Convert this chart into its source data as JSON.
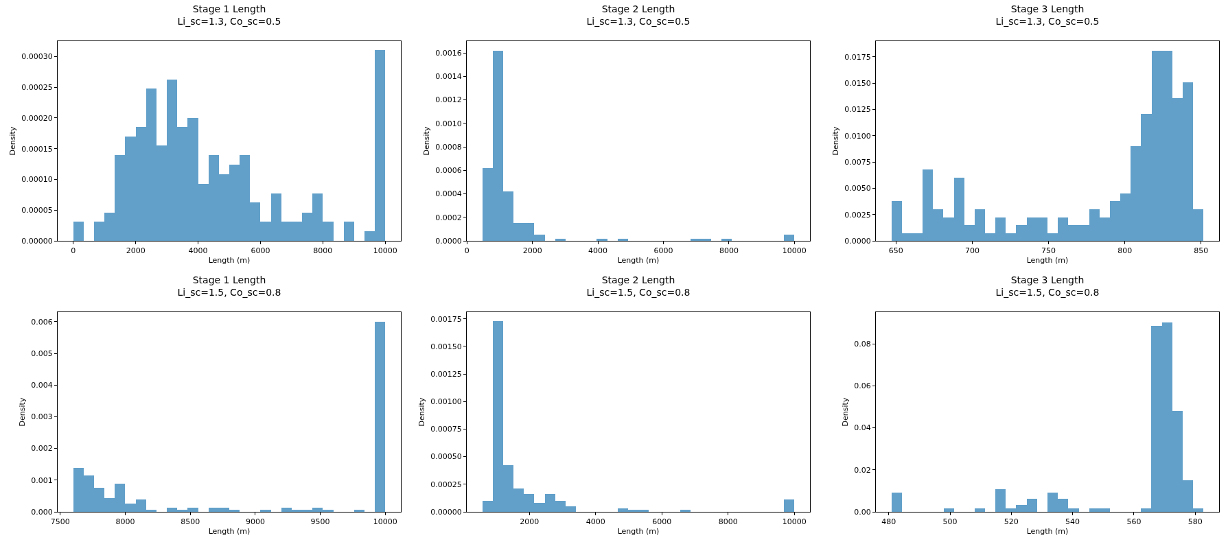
{
  "chart_data": [
    {
      "type": "histogram",
      "title": "Stage 1 Length",
      "subtitle": "Li_sc=1.3, Co_sc=0.5",
      "xlabel": "Length (m)",
      "ylabel": "Density",
      "color": "#62a0ca",
      "bins": [
        0,
        333.3,
        666.7,
        1000,
        1333.3,
        1666.7,
        2000,
        2333.3,
        2666.7,
        3000,
        3333.3,
        3666.7,
        4000,
        4333.3,
        4666.7,
        5000,
        5333.3,
        5666.7,
        6000,
        6333.3,
        6666.7,
        7000,
        7333.3,
        7666.7,
        8000,
        8333.3,
        8666.7,
        9000,
        9333.3,
        9666.7,
        10000
      ],
      "values": [
        3.1e-05,
        0,
        3.1e-05,
        4.6e-05,
        0.00014,
        0.00017,
        0.000185,
        0.000248,
        0.000155,
        0.000263,
        0.000185,
        0.0002,
        9.3e-05,
        0.00014,
        0.000108,
        0.000124,
        0.00014,
        6.2e-05,
        3.1e-05,
        7.7e-05,
        3.1e-05,
        3.1e-05,
        4.6e-05,
        7.7e-05,
        3.1e-05,
        0,
        3.1e-05,
        0,
        1.55e-05,
        0.00031
      ],
      "xlim": [
        -500,
        10500
      ],
      "ylim": [
        0,
        0.000325
      ],
      "xticks": [
        0,
        2000,
        4000,
        6000,
        8000,
        10000
      ],
      "yticks": [
        {
          "value": 0,
          "label": "0.00000"
        },
        {
          "value": 5e-05,
          "label": "0.00005"
        },
        {
          "value": 0.0001,
          "label": "0.00010"
        },
        {
          "value": 0.00015,
          "label": "0.00015"
        },
        {
          "value": 0.0002,
          "label": "0.00020"
        },
        {
          "value": 0.00025,
          "label": "0.00025"
        },
        {
          "value": 0.0003,
          "label": "0.00030"
        }
      ]
    },
    {
      "type": "histogram",
      "title": "Stage 2 Length",
      "subtitle": "Li_sc=1.3, Co_sc=0.5",
      "xlabel": "Length (m)",
      "ylabel": "Density",
      "color": "#62a0ca",
      "bins": [
        470,
        787.7,
        1105.3,
        1423,
        1740.7,
        2058.3,
        2376,
        2693.7,
        3011.3,
        3329,
        3646.7,
        3964.3,
        4282,
        4599.7,
        4917.3,
        5235,
        5552.7,
        5870.3,
        6188,
        6505.7,
        6823.3,
        7141,
        7458.7,
        7776.3,
        8094,
        8411.7,
        8729.3,
        9047,
        9364.7,
        9682.3,
        10000
      ],
      "values": [
        0.00062,
        0.00162,
        0.00042,
        0.00015,
        0.00015,
        5e-05,
        0,
        2e-05,
        0,
        0,
        0,
        2e-05,
        0,
        2e-05,
        0,
        0,
        0,
        0,
        0,
        0,
        2e-05,
        2e-05,
        0,
        2e-05,
        0,
        0,
        0,
        0,
        0,
        5e-05
      ],
      "xlim": [
        -6,
        10476
      ],
      "ylim": [
        0,
        0.0017
      ],
      "xticks": [
        0,
        2000,
        4000,
        6000,
        8000,
        10000
      ],
      "yticks": [
        {
          "value": 0,
          "label": "0.0000"
        },
        {
          "value": 0.0002,
          "label": "0.0002"
        },
        {
          "value": 0.0004,
          "label": "0.0004"
        },
        {
          "value": 0.0006,
          "label": "0.0006"
        },
        {
          "value": 0.0008,
          "label": "0.0008"
        },
        {
          "value": 0.001,
          "label": "0.0010"
        },
        {
          "value": 0.0012,
          "label": "0.0012"
        },
        {
          "value": 0.0014,
          "label": "0.0014"
        },
        {
          "value": 0.0016,
          "label": "0.0016"
        }
      ]
    },
    {
      "type": "histogram",
      "title": "Stage 3 Length",
      "subtitle": "Li_sc=1.3, Co_sc=0.5",
      "xlabel": "Length (m)",
      "ylabel": "Density",
      "color": "#62a0ca",
      "bins": [
        647,
        653.8,
        660.6,
        667.5,
        674.3,
        681.1,
        687.9,
        694.7,
        701.6,
        708.4,
        715.2,
        722,
        728.8,
        735.7,
        742.5,
        749.3,
        756.1,
        762.9,
        769.8,
        776.6,
        783.4,
        790.2,
        797,
        803.9,
        810.7,
        817.5,
        824.3,
        831.1,
        838,
        844.8,
        851.6
      ],
      "values": [
        0.0038,
        0.00075,
        0.00075,
        0.0068,
        0.003,
        0.0022,
        0.006,
        0.0015,
        0.003,
        0.00075,
        0.0022,
        0.00075,
        0.0015,
        0.0022,
        0.0022,
        0.00075,
        0.0022,
        0.0015,
        0.0015,
        0.003,
        0.0022,
        0.0038,
        0.0045,
        0.009,
        0.0121,
        0.0181,
        0.0181,
        0.0136,
        0.0151,
        0.003
      ],
      "xlim": [
        636.8,
        861.8
      ],
      "ylim": [
        0,
        0.019
      ],
      "xticks": [
        650,
        700,
        750,
        800,
        850
      ],
      "yticks": [
        {
          "value": 0,
          "label": "0.0000"
        },
        {
          "value": 0.0025,
          "label": "0.0025"
        },
        {
          "value": 0.005,
          "label": "0.0050"
        },
        {
          "value": 0.0075,
          "label": "0.0075"
        },
        {
          "value": 0.01,
          "label": "0.0100"
        },
        {
          "value": 0.0125,
          "label": "0.0125"
        },
        {
          "value": 0.015,
          "label": "0.0150"
        },
        {
          "value": 0.0175,
          "label": "0.0175"
        }
      ]
    },
    {
      "type": "histogram",
      "title": "Stage 1 Length",
      "subtitle": "Li_sc=1.5, Co_sc=0.8",
      "xlabel": "Length (m)",
      "ylabel": "Density",
      "color": "#62a0ca",
      "bins": [
        7600,
        7680,
        7760,
        7840,
        7920,
        8000,
        8080,
        8160,
        8240,
        8320,
        8400,
        8480,
        8560,
        8640,
        8720,
        8800,
        8880,
        8960,
        9040,
        9120,
        9200,
        9280,
        9360,
        9440,
        9520,
        9600,
        9680,
        9760,
        9840,
        9920,
        10000
      ],
      "values": [
        0.00138,
        0.00114,
        0.00075,
        0.00044,
        0.00089,
        0.00025,
        0.00039,
        6e-05,
        0,
        0.00012,
        6e-05,
        0.00012,
        0,
        0.00012,
        0.00012,
        6e-05,
        0,
        0,
        6e-05,
        0,
        0.00012,
        6e-05,
        6e-05,
        0.00012,
        6e-05,
        0,
        0,
        6e-05,
        0,
        0.006
      ],
      "xlim": [
        7480,
        10120
      ],
      "ylim": [
        0,
        0.0063
      ],
      "xticks": [
        7500,
        8000,
        8500,
        9000,
        9500,
        10000
      ],
      "yticks": [
        {
          "value": 0,
          "label": "0.000"
        },
        {
          "value": 0.001,
          "label": "0.001"
        },
        {
          "value": 0.002,
          "label": "0.002"
        },
        {
          "value": 0.003,
          "label": "0.003"
        },
        {
          "value": 0.004,
          "label": "0.004"
        },
        {
          "value": 0.005,
          "label": "0.005"
        },
        {
          "value": 0.006,
          "label": "0.006"
        }
      ]
    },
    {
      "type": "histogram",
      "title": "Stage 2 Length",
      "subtitle": "Li_sc=1.5, Co_sc=0.8",
      "xlabel": "Length (m)",
      "ylabel": "Density",
      "color": "#62a0ca",
      "bins": [
        577,
        891.1,
        1205.2,
        1519.3,
        1833.4,
        2147.5,
        2461.6,
        2775.7,
        3089.8,
        3403.9,
        3718,
        4032.1,
        4346.2,
        4660.3,
        4974.4,
        5288.5,
        5602.6,
        5916.7,
        6230.8,
        6544.9,
        6859,
        7173.1,
        7487.2,
        7801.3,
        8115.4,
        8429.5,
        8743.6,
        9057.7,
        9371.8,
        9685.9,
        10000
      ],
      "values": [
        0.0001,
        0.00173,
        0.00042,
        0.00021,
        0.00016,
        8e-05,
        0.00016,
        0.0001,
        5e-05,
        0,
        0,
        0,
        0,
        3e-05,
        1.6e-05,
        1.6e-05,
        0,
        0,
        0,
        1.6e-05,
        0,
        0,
        0,
        0,
        0,
        0,
        0,
        0,
        0,
        0.00011
      ],
      "xlim": [
        106,
        10471
      ],
      "ylim": [
        0,
        0.00181
      ],
      "xticks": [
        2000,
        4000,
        6000,
        8000,
        10000
      ],
      "yticks": [
        {
          "value": 0,
          "label": "0.00000"
        },
        {
          "value": 0.00025,
          "label": "0.00025"
        },
        {
          "value": 0.0005,
          "label": "0.00050"
        },
        {
          "value": 0.00075,
          "label": "0.00075"
        },
        {
          "value": 0.001,
          "label": "0.00100"
        },
        {
          "value": 0.00125,
          "label": "0.00125"
        },
        {
          "value": 0.0015,
          "label": "0.00150"
        },
        {
          "value": 0.00175,
          "label": "0.00175"
        }
      ]
    },
    {
      "type": "histogram",
      "title": "Stage 3 Length",
      "subtitle": "Li_sc=1.5, Co_sc=0.8",
      "xlabel": "Length (m)",
      "ylabel": "Density",
      "color": "#62a0ca",
      "bins": [
        480.9,
        484.3,
        487.7,
        491.1,
        494.5,
        497.9,
        501.3,
        504.7,
        508,
        511.4,
        514.8,
        518.2,
        521.6,
        525,
        528.4,
        531.8,
        535.2,
        538.6,
        542,
        545.4,
        548.7,
        552.1,
        555.5,
        558.9,
        562.3,
        565.7,
        569.1,
        572.5,
        575.9,
        579.3,
        582.7
      ],
      "values": [
        0.0091,
        0,
        0,
        0,
        0,
        0.0016,
        0,
        0,
        0.0016,
        0,
        0.0108,
        0.0016,
        0.0033,
        0.0062,
        0,
        0.0091,
        0.0062,
        0.0016,
        0,
        0.0016,
        0.0016,
        0,
        0,
        0,
        0.0016,
        0.0886,
        0.0903,
        0.048,
        0.0149,
        0.0016
      ],
      "xlim": [
        475.8,
        587.8
      ],
      "ylim": [
        0,
        0.0951
      ],
      "xticks": [
        480,
        500,
        520,
        540,
        560,
        580
      ],
      "yticks": [
        {
          "value": 0,
          "label": "0.00"
        },
        {
          "value": 0.02,
          "label": "0.02"
        },
        {
          "value": 0.04,
          "label": "0.04"
        },
        {
          "value": 0.06,
          "label": "0.06"
        },
        {
          "value": 0.08,
          "label": "0.08"
        }
      ]
    }
  ]
}
